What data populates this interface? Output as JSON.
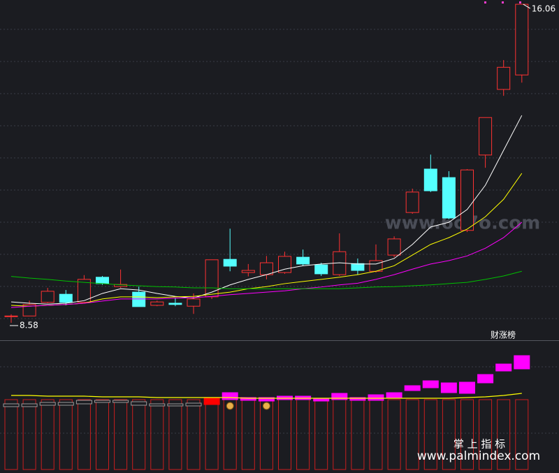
{
  "chart_data": [
    {
      "type": "candlestick",
      "ylim": [
        8.17,
        16.16
      ],
      "up_color": "#ff3232",
      "down_color": "#54ffff",
      "open": [
        8.74,
        8.74,
        9.06,
        9.25,
        9.06,
        9.65,
        9.43,
        9.3,
        8.99,
        9.04,
        8.97,
        9.19,
        10.07,
        9.76,
        9.71,
        9.76,
        10.12,
        9.94,
        9.71,
        9.97,
        9.79,
        10.17,
        11.17,
        12.19,
        11.99,
        10.75,
        12.52,
        14.06,
        14.4
      ],
      "high": [
        8.78,
        9.1,
        9.4,
        9.35,
        9.7,
        9.68,
        9.83,
        9.43,
        9.1,
        9.17,
        9.27,
        10.06,
        10.79,
        9.96,
        10.15,
        10.25,
        10.3,
        9.99,
        10.68,
        10.09,
        10.42,
        10.61,
        11.73,
        12.53,
        12.14,
        12.19,
        13.4,
        14.75,
        16.06
      ],
      "low": [
        8.58,
        8.74,
        9.04,
        8.99,
        9.04,
        9.47,
        9.4,
        8.96,
        8.97,
        8.97,
        8.79,
        9.14,
        9.79,
        9.67,
        9.6,
        9.73,
        9.92,
        9.68,
        9.68,
        9.71,
        9.76,
        10.12,
        11.14,
        11.65,
        11.01,
        10.71,
        12.22,
        13.91,
        14.22
      ],
      "close": [
        8.74,
        9.01,
        9.32,
        9.06,
        9.6,
        9.5,
        9.48,
        8.96,
        9.07,
        9.01,
        9.14,
        10.06,
        9.91,
        9.81,
        9.99,
        10.14,
        9.96,
        9.73,
        10.25,
        9.81,
        10.04,
        10.55,
        11.65,
        11.68,
        11.04,
        12.17,
        13.4,
        14.58,
        16.06
      ],
      "series": [
        {
          "color": "#ffffff",
          "values": [
            9.07,
            9.04,
            9.02,
            9.04,
            9.1,
            9.27,
            9.38,
            9.35,
            9.27,
            9.2,
            9.16,
            9.3,
            9.47,
            9.6,
            9.71,
            9.84,
            9.92,
            9.96,
            9.99,
            9.96,
            9.96,
            10.09,
            10.42,
            10.83,
            10.94,
            11.24,
            11.81,
            12.63,
            13.45
          ]
        },
        {
          "color": "#ffff00",
          "values": [
            8.99,
            8.97,
            8.99,
            9.01,
            9.04,
            9.14,
            9.19,
            9.19,
            9.17,
            9.19,
            9.2,
            9.25,
            9.3,
            9.38,
            9.43,
            9.5,
            9.55,
            9.6,
            9.65,
            9.71,
            9.79,
            9.92,
            10.17,
            10.42,
            10.58,
            10.78,
            11.07,
            11.48,
            12.09
          ]
        },
        {
          "color": "#ff00ff",
          "values": [
            8.94,
            8.97,
            8.99,
            9.01,
            9.04,
            9.09,
            9.14,
            9.14,
            9.14,
            9.16,
            9.17,
            9.2,
            9.24,
            9.27,
            9.3,
            9.33,
            9.38,
            9.42,
            9.47,
            9.51,
            9.6,
            9.71,
            9.84,
            9.96,
            10.04,
            10.15,
            10.33,
            10.58,
            10.94
          ]
        },
        {
          "color": "#00c000",
          "values": [
            9.67,
            9.63,
            9.6,
            9.56,
            9.53,
            9.5,
            9.47,
            9.45,
            9.43,
            9.42,
            9.4,
            9.4,
            9.38,
            9.38,
            9.38,
            9.38,
            9.38,
            9.38,
            9.38,
            9.4,
            9.42,
            9.43,
            9.45,
            9.47,
            9.5,
            9.53,
            9.6,
            9.68,
            9.79
          ]
        }
      ],
      "badge": "财涨榜"
    },
    {
      "type": "range-bar",
      "ylim": [
        -105,
        85
      ],
      "top": [
        -6,
        -6,
        -4,
        -4,
        -1,
        -1,
        -1,
        -3,
        -6,
        -6,
        -5,
        3,
        10,
        3,
        3,
        5,
        5,
        2,
        9,
        3,
        7,
        10,
        20,
        27,
        24,
        25,
        36,
        51,
        63
      ],
      "bottom": [
        -10,
        -10,
        -8,
        -8,
        -6,
        -4,
        -4,
        -8,
        -9,
        -9,
        -9,
        -7,
        0,
        -1,
        -2,
        0,
        0,
        -2,
        0,
        -1,
        -1,
        3,
        13,
        17,
        10,
        9,
        24,
        41,
        44
      ],
      "colors": [
        "#9a9a9a",
        "#9a9a9a",
        "#9a9a9a",
        "#9a9a9a",
        "#9a9a9a",
        "#9a9a9a",
        "#9a9a9a",
        "#9a9a9a",
        "#9a9a9a",
        "#9a9a9a",
        "#9a9a9a",
        "#ff0000",
        "#ff00ff",
        "#ff00ff",
        "#ff00ff",
        "#ff00ff",
        "#ff00ff",
        "#ff00ff",
        "#ff00ff",
        "#ff00ff",
        "#ff00ff",
        "#ff00ff",
        "#ff00ff",
        "#ff00ff",
        "#ff00ff",
        "#ff00ff",
        "#ff00ff",
        "#ff00ff",
        "#ff00ff"
      ],
      "line": {
        "color": "#ffff00",
        "values": [
          6,
          6,
          5,
          5,
          5,
          4,
          4,
          4,
          3,
          3,
          3,
          3,
          3,
          2,
          2,
          2,
          2,
          2,
          2,
          2,
          2,
          2,
          2,
          2,
          2,
          3,
          4,
          6,
          9
        ]
      }
    }
  ],
  "watermarks": [
    "www.6o7o.com",
    "掌 上 指 标",
    "www.palmindex.com"
  ]
}
